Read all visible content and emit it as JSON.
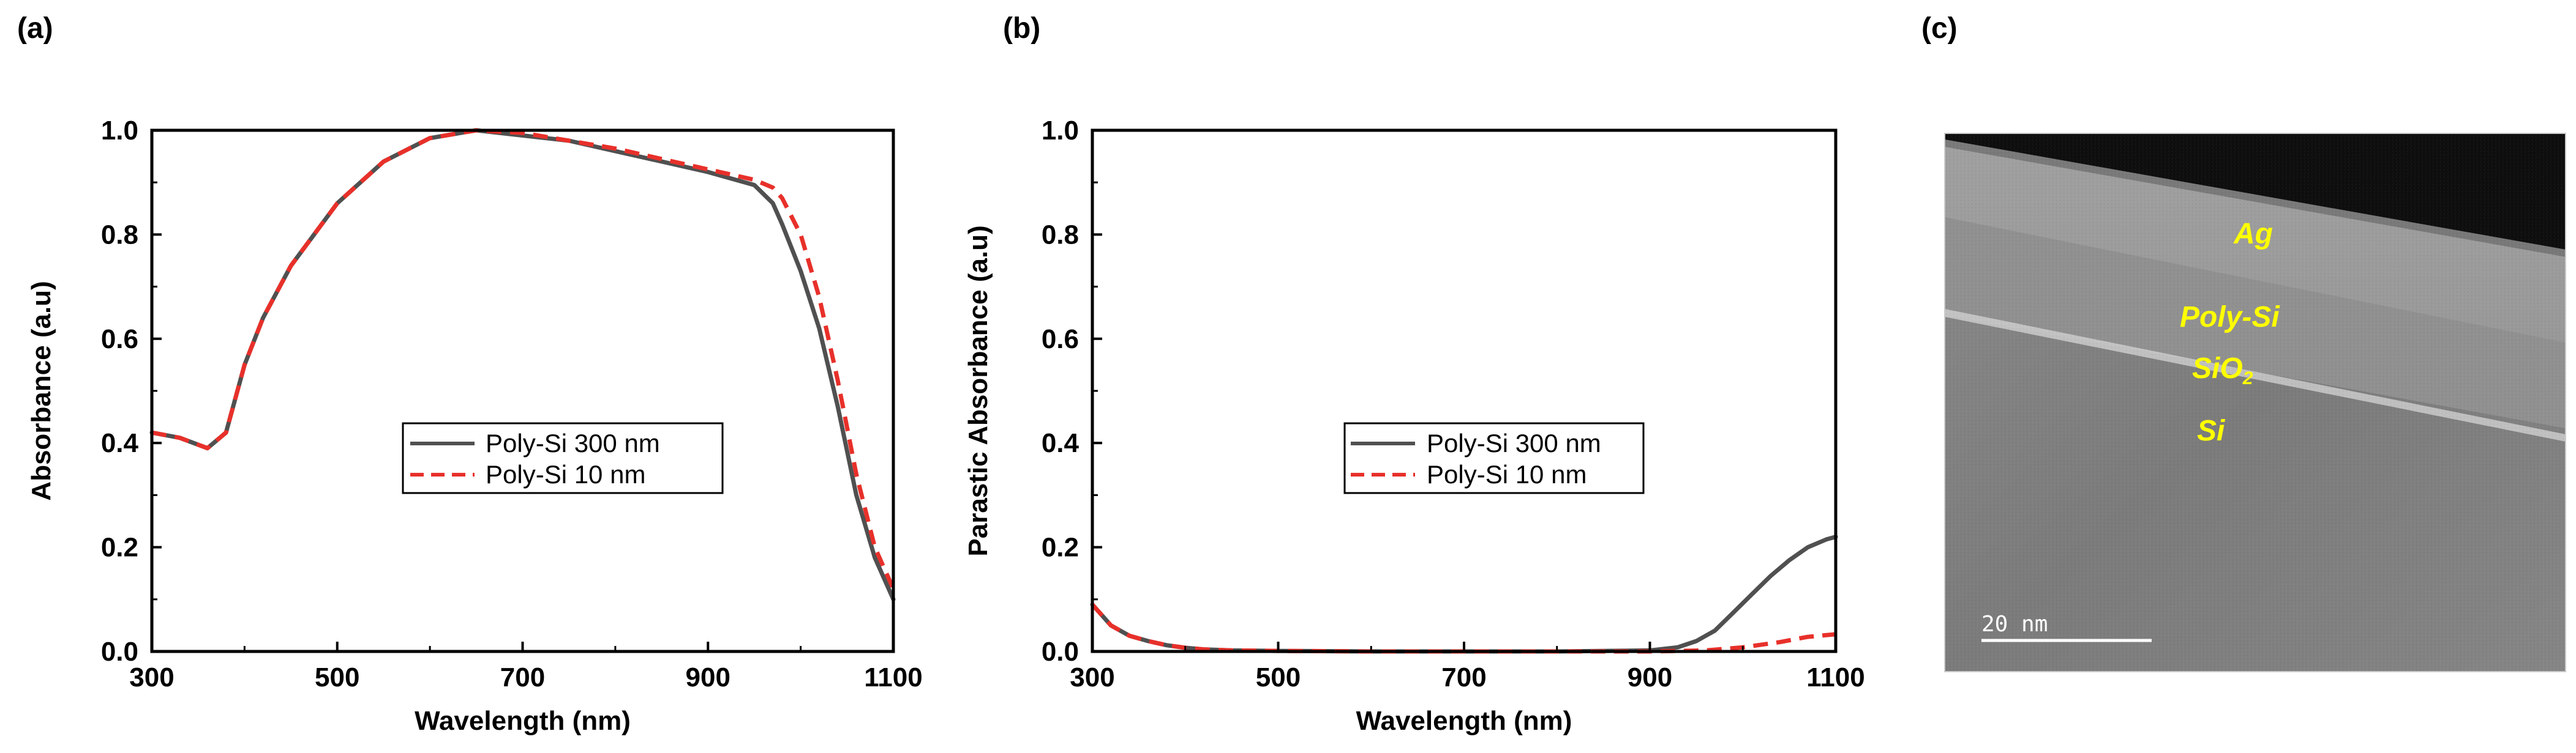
{
  "chart_data": [
    {
      "type": "line",
      "panel_label": "(a)",
      "title": "",
      "xlabel": "Wavelength (nm)",
      "ylabel": "Absorbance (a.u)",
      "xlim": [
        300,
        1100
      ],
      "ylim": [
        0,
        1.0
      ],
      "xticks": [
        300,
        500,
        700,
        900,
        1100
      ],
      "yticks": [
        0.0,
        0.2,
        0.4,
        0.6,
        0.8,
        1.0
      ],
      "xtick_labels": [
        "300",
        "500",
        "700",
        "900",
        "1100"
      ],
      "ytick_labels": [
        "0.0",
        "0.2",
        "0.4",
        "0.6",
        "0.8",
        "1.0"
      ],
      "legend": {
        "position": "center"
      },
      "series": [
        {
          "name": "Poly-Si 300 nm",
          "color": "#505050",
          "style": "solid",
          "x": [
            300,
            330,
            360,
            380,
            400,
            420,
            450,
            500,
            550,
            600,
            650,
            700,
            750,
            800,
            850,
            900,
            950,
            970,
            980,
            1000,
            1020,
            1040,
            1060,
            1080,
            1100
          ],
          "y": [
            0.42,
            0.41,
            0.39,
            0.42,
            0.55,
            0.64,
            0.74,
            0.86,
            0.94,
            0.985,
            1.0,
            0.99,
            0.98,
            0.96,
            0.94,
            0.92,
            0.895,
            0.86,
            0.82,
            0.73,
            0.62,
            0.47,
            0.3,
            0.18,
            0.1
          ]
        },
        {
          "name": "Poly-Si 10 nm",
          "color": "#e8302a",
          "style": "dashed",
          "x": [
            300,
            330,
            360,
            380,
            400,
            420,
            450,
            500,
            550,
            600,
            650,
            700,
            750,
            800,
            850,
            900,
            950,
            970,
            980,
            1000,
            1020,
            1040,
            1060,
            1080,
            1100
          ],
          "y": [
            0.42,
            0.41,
            0.39,
            0.42,
            0.55,
            0.64,
            0.74,
            0.86,
            0.94,
            0.985,
            1.0,
            0.995,
            0.98,
            0.965,
            0.945,
            0.925,
            0.905,
            0.89,
            0.87,
            0.8,
            0.68,
            0.52,
            0.34,
            0.2,
            0.12
          ]
        }
      ]
    },
    {
      "type": "line",
      "panel_label": "(b)",
      "title": "",
      "xlabel": "Wavelength (nm)",
      "ylabel": "Parastic Absorbance (a.u)",
      "xlim": [
        300,
        1100
      ],
      "ylim": [
        0,
        1.0
      ],
      "xticks": [
        300,
        500,
        700,
        900,
        1100
      ],
      "yticks": [
        0.0,
        0.2,
        0.4,
        0.6,
        0.8,
        1.0
      ],
      "xtick_labels": [
        "300",
        "500",
        "700",
        "900",
        "1100"
      ],
      "ytick_labels": [
        "0.0",
        "0.2",
        "0.4",
        "0.6",
        "0.8",
        "1.0"
      ],
      "legend": {
        "position": "center-right"
      },
      "series": [
        {
          "name": "Poly-Si 300 nm",
          "color": "#505050",
          "style": "solid",
          "x": [
            300,
            320,
            340,
            360,
            380,
            400,
            420,
            450,
            500,
            600,
            700,
            800,
            900,
            930,
            950,
            970,
            990,
            1010,
            1030,
            1050,
            1070,
            1090,
            1100
          ],
          "y": [
            0.09,
            0.05,
            0.03,
            0.02,
            0.012,
            0.007,
            0.004,
            0.002,
            0.001,
            0.0,
            0.0,
            0.0,
            0.002,
            0.008,
            0.02,
            0.04,
            0.075,
            0.11,
            0.145,
            0.175,
            0.2,
            0.215,
            0.22
          ]
        },
        {
          "name": "Poly-Si 10 nm",
          "color": "#e8302a",
          "style": "dashed",
          "x": [
            300,
            320,
            340,
            360,
            380,
            400,
            420,
            450,
            500,
            600,
            700,
            800,
            900,
            960,
            1000,
            1040,
            1070,
            1100
          ],
          "y": [
            0.09,
            0.05,
            0.03,
            0.02,
            0.012,
            0.007,
            0.004,
            0.002,
            0.001,
            0.0,
            0.0,
            0.0,
            0.0,
            0.002,
            0.008,
            0.018,
            0.028,
            0.033
          ]
        }
      ]
    }
  ],
  "panel_c": {
    "panel_label": "(c)",
    "layers": [
      "Ag",
      "Poly-Si",
      "SiO",
      "Si"
    ],
    "sio2_subscript": "2",
    "scale_bar_label": "20 nm"
  }
}
